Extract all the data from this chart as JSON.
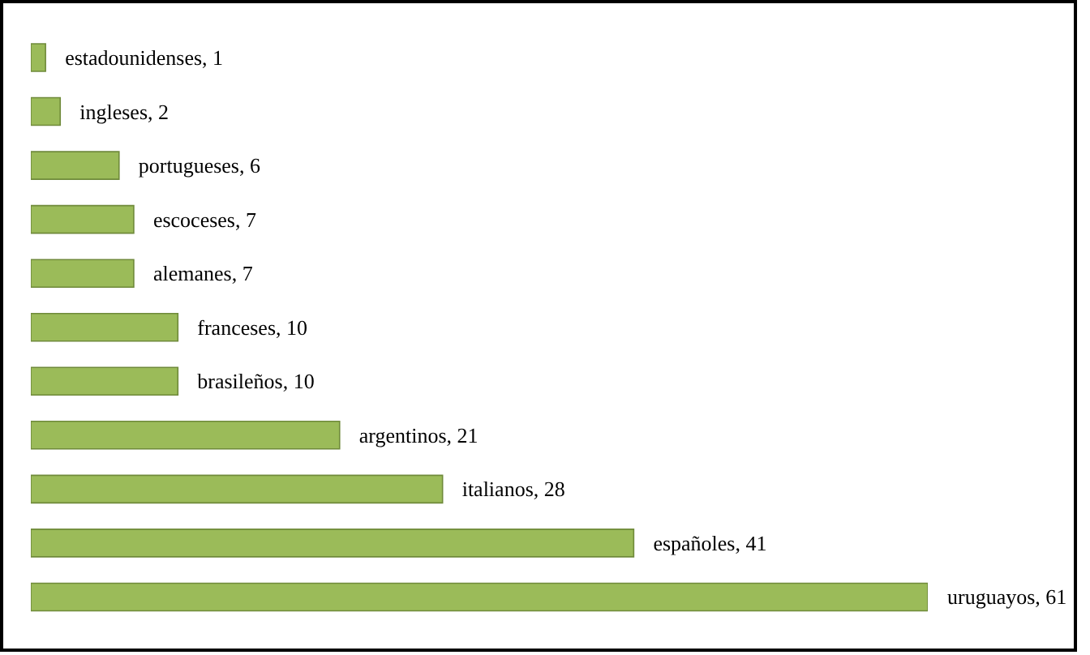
{
  "chart_data": {
    "type": "bar",
    "orientation": "horizontal",
    "categories": [
      null,
      null,
      null,
      null,
      null,
      null,
      null,
      null,
      null,
      null,
      null
    ],
    "values": [
      1,
      2,
      6,
      7,
      7,
      10,
      10,
      21,
      28,
      41,
      61
    ],
    "value_labels": [
      "estadounidenses, 1",
      "ingleses, 2",
      "portugueses, 6",
      "escoceses, 7",
      "alemanes, 7",
      "franceses, 10",
      "brasileños, 10",
      "argentinos, 21",
      "italianos, 28",
      "españoles, 41",
      "uruguayos, 61"
    ],
    "color": "#9bbb59"
  }
}
